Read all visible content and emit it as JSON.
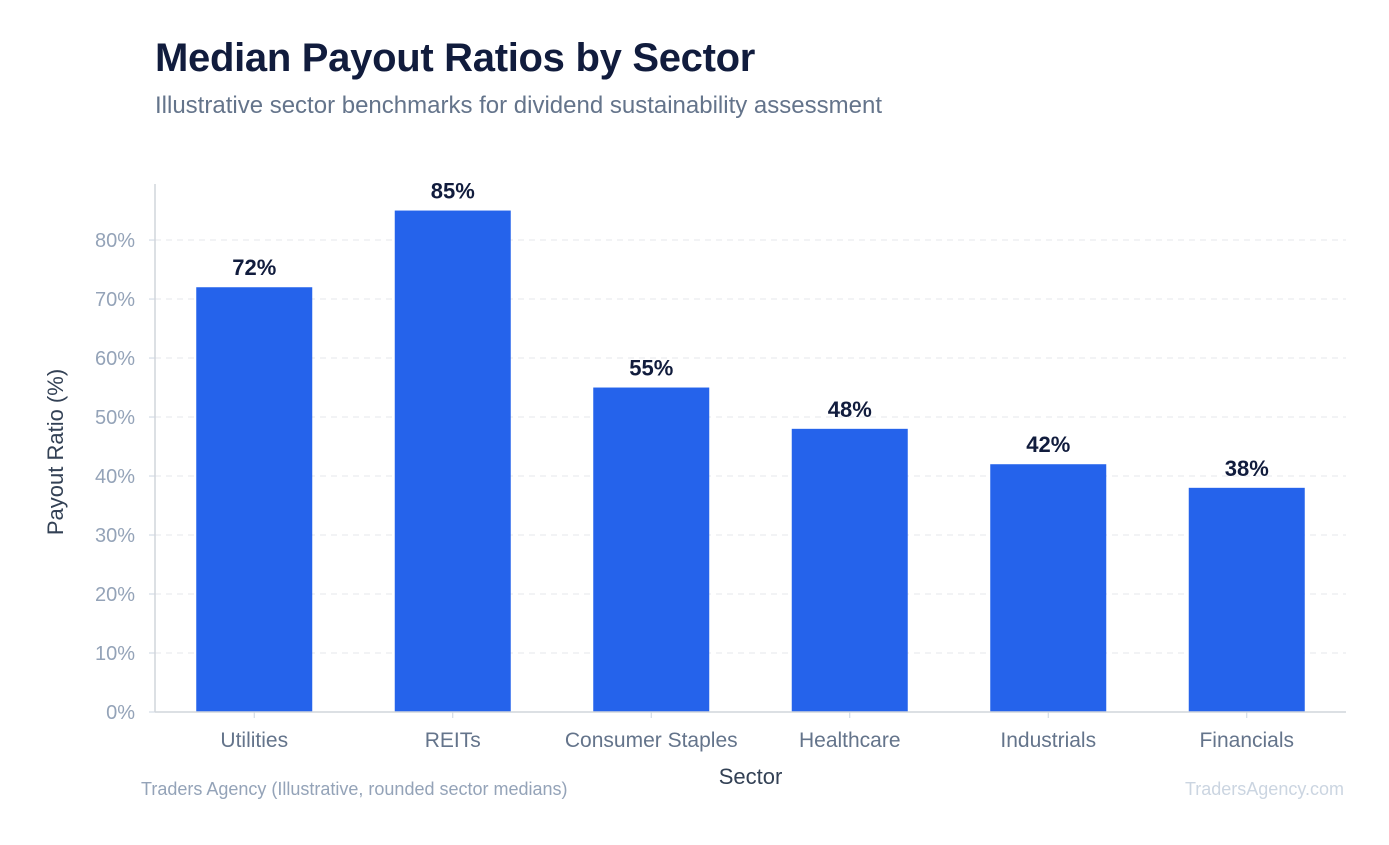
{
  "header": {
    "title": "Median Payout Ratios by Sector",
    "subtitle": "Illustrative sector benchmarks for dividend sustainability assessment"
  },
  "footer": {
    "source": "Traders Agency (Illustrative, rounded sector medians)",
    "brand": "TradersAgency.com"
  },
  "colors": {
    "bar": "#2563eb",
    "title": "#111c3d",
    "axis_text": "#94a3b8",
    "category_text": "#64748b",
    "grid": "#e5e7eb"
  },
  "chart_data": {
    "type": "bar",
    "categories": [
      "Utilities",
      "REITs",
      "Consumer Staples",
      "Healthcare",
      "Industrials",
      "Financials"
    ],
    "values": [
      72,
      85,
      55,
      48,
      42,
      38
    ],
    "value_labels": [
      "72%",
      "85%",
      "55%",
      "48%",
      "42%",
      "38%"
    ],
    "xlabel": "Sector",
    "ylabel": "Payout Ratio (%)",
    "ylim": [
      0,
      89.5
    ],
    "yticks": [
      0,
      10,
      20,
      30,
      40,
      50,
      60,
      70,
      80
    ],
    "ytick_labels": [
      "0%",
      "10%",
      "20%",
      "30%",
      "40%",
      "50%",
      "60%",
      "70%",
      "80%"
    ],
    "grid": true,
    "legend": "none"
  }
}
